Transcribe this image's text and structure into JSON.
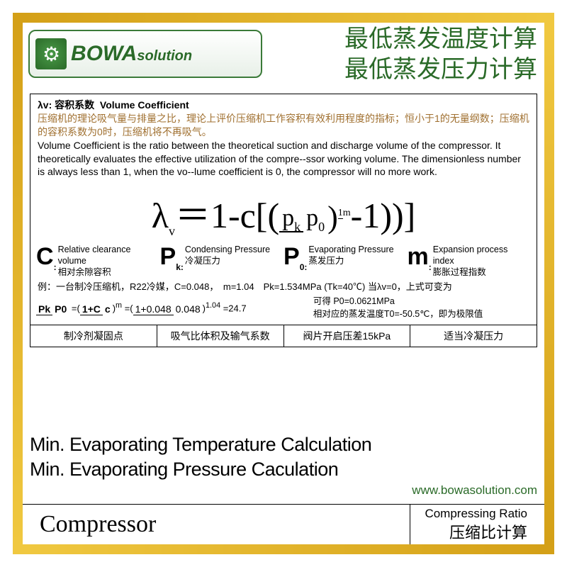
{
  "logo": {
    "brand_big": "BOWA",
    "brand_small": "solution",
    "border_color": "#3a7a38",
    "text_color": "#2a6a28"
  },
  "title_cn": {
    "line1": "最低蒸发温度计算",
    "line2": "最低蒸发压力计算",
    "color": "#2a6a28",
    "fontsize": 34
  },
  "definition": {
    "symbol": "λv:",
    "name_cn": "容积系数",
    "name_en": "Volume Coefficient",
    "desc_cn": "压缩机的理论吸气量与排量之比，理论上评价压缩机工作容积有效利用程度的指标；恒小于1的无量纲数；压缩机的容积系数为0时，压缩机将不再吸气。",
    "desc_en": "Volume Coefficient is the ratio between the theoretical suction and discharge volume of the compressor. It theoretically evaluates the effective utilization of the compre--ssor working volume. The dimensionless number is always less than 1, when the vo--lume coefficient is 0, the compressor will no more work.",
    "cn_color": "#a07030"
  },
  "formula": {
    "lhs": "λ",
    "lhs_sub": "v",
    "eq": "＝",
    "expr_a": "1-c[(",
    "pk": "p",
    "pk_sub": "k",
    "p0": "p",
    "p0_sub": "0",
    "exp_top": "1",
    "exp_bot": "m",
    "expr_b": "-1))]"
  },
  "vars": [
    {
      "sym": "C",
      "sub": ":",
      "en": "Relative clearance volume",
      "cn": "相对余隙容积"
    },
    {
      "sym": "P",
      "sub": "k:",
      "en": "Condensing Pressure",
      "cn": "冷凝压力"
    },
    {
      "sym": "P",
      "sub": "0:",
      "en": "Evaporating Pressure",
      "cn": "蒸发压力"
    },
    {
      "sym": "m",
      "sub": ":",
      "en": "Expansion process index",
      "cn": "膨胀过程指数"
    }
  ],
  "example": {
    "prefix": "例：一台制冷压缩机，R22冷媒，C=0.048，　m=1.04　Pk=1.534MPa (Tk=40℃) 当λv=0，上式可变为",
    "frac_lhs_t": "Pk",
    "frac_lhs_b": "P0",
    "eq1": "=",
    "frac_mid_t": "1+C",
    "frac_mid_b": "c",
    "exp": "m",
    "eq2": "=",
    "frac_r_t": "1+0.048",
    "frac_r_b": "0.048",
    "exp2": "1.04",
    "result": "=24.7",
    "right1": "可得 P0=0.0621MPa",
    "right2": "相对应的蒸发温度T0=-50.5℃，即为极限值"
  },
  "bottom_cells": [
    "制冷剂凝固点",
    "吸气比体积及输气系数",
    "阀片开启压差15kPa",
    "适当冷凝压力"
  ],
  "title_en": {
    "line1": "Min. Evaporating Temperature Calculation",
    "line2": "Min. Evaporating Pressure Caculation"
  },
  "url": "www.bowasolution.com",
  "footer": {
    "compressor": "Compressor",
    "ratio_en": "Compressing Ratio",
    "ratio_cn": "压缩比计算"
  },
  "colors": {
    "gold": "#d4a017",
    "border": "#000000",
    "bg": "#ffffff"
  }
}
